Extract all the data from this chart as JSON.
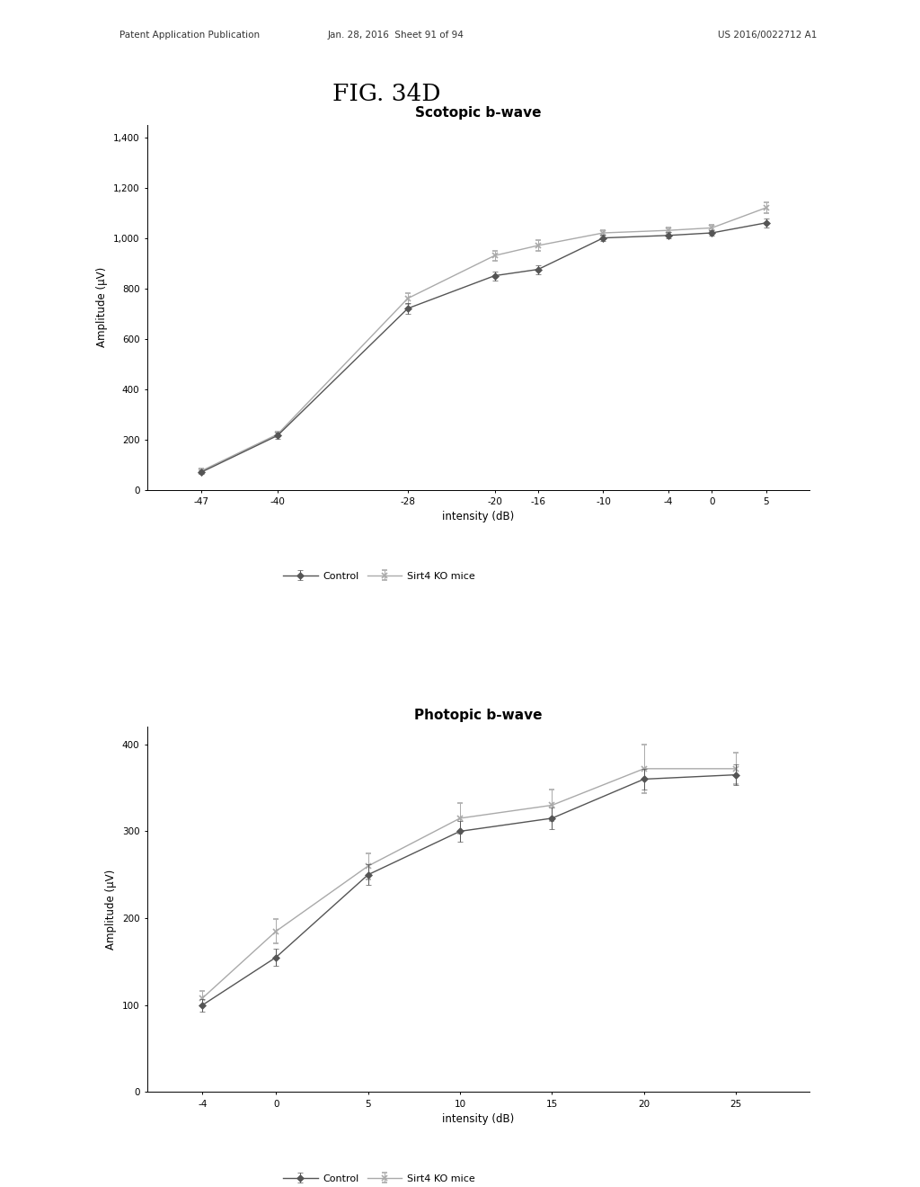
{
  "fig_label": "FIG. 34D",
  "patent_header_left": "Patent Application Publication",
  "patent_header_mid": "Jan. 28, 2016  Sheet 91 of 94",
  "patent_header_right": "US 2016/0022712 A1",
  "scotopic": {
    "title": "Scotopic b-wave",
    "xlabel": "intensity (dB)",
    "ylabel": "Amplitude (μV)",
    "xlim": [
      -52,
      9
    ],
    "ylim": [
      0,
      1450
    ],
    "yticks": [
      0,
      200,
      400,
      600,
      800,
      1000,
      1200,
      1400
    ],
    "ytick_labels": [
      "0",
      "200",
      "400",
      "600",
      "800",
      "1,000",
      "1,200",
      "1,400"
    ],
    "xticks": [
      -47,
      -40,
      -28,
      -20,
      -16,
      -10,
      -4,
      0,
      5
    ],
    "control_x": [
      -47,
      -40,
      -28,
      -20,
      -16,
      -10,
      -4,
      0,
      5
    ],
    "control_y": [
      70,
      215,
      720,
      850,
      875,
      1000,
      1010,
      1020,
      1060
    ],
    "control_yerr": [
      8,
      12,
      20,
      18,
      18,
      12,
      12,
      12,
      18
    ],
    "sirt4_x": [
      -47,
      -40,
      -28,
      -20,
      -16,
      -10,
      -4,
      0,
      5
    ],
    "sirt4_y": [
      75,
      220,
      760,
      930,
      970,
      1020,
      1030,
      1040,
      1120
    ],
    "sirt4_yerr": [
      8,
      12,
      22,
      20,
      20,
      12,
      12,
      12,
      22
    ],
    "control_color": "#555555",
    "sirt4_color": "#aaaaaa",
    "control_label": "Control",
    "sirt4_label": "Sirt4 KO mice"
  },
  "photopic": {
    "title": "Photopic b-wave",
    "xlabel": "intensity (dB)",
    "ylabel": "Amplitude (μV)",
    "xlim": [
      -7,
      29
    ],
    "ylim": [
      0,
      420
    ],
    "yticks": [
      0,
      100,
      200,
      300,
      400
    ],
    "ytick_labels": [
      "0",
      "100",
      "200",
      "300",
      "400"
    ],
    "xticks": [
      -4,
      0,
      5,
      10,
      15,
      20,
      25
    ],
    "control_x": [
      -4,
      0,
      5,
      10,
      15,
      20,
      25
    ],
    "control_y": [
      100,
      155,
      250,
      300,
      315,
      360,
      365
    ],
    "control_yerr": [
      7,
      10,
      12,
      12,
      12,
      12,
      12
    ],
    "sirt4_x": [
      -4,
      0,
      5,
      10,
      15,
      20,
      25
    ],
    "sirt4_y": [
      108,
      185,
      260,
      315,
      330,
      372,
      372
    ],
    "sirt4_yerr": [
      8,
      14,
      15,
      18,
      18,
      28,
      18
    ],
    "control_color": "#555555",
    "sirt4_color": "#aaaaaa",
    "control_label": "Control",
    "sirt4_label": "Sirt4 KO mice"
  }
}
